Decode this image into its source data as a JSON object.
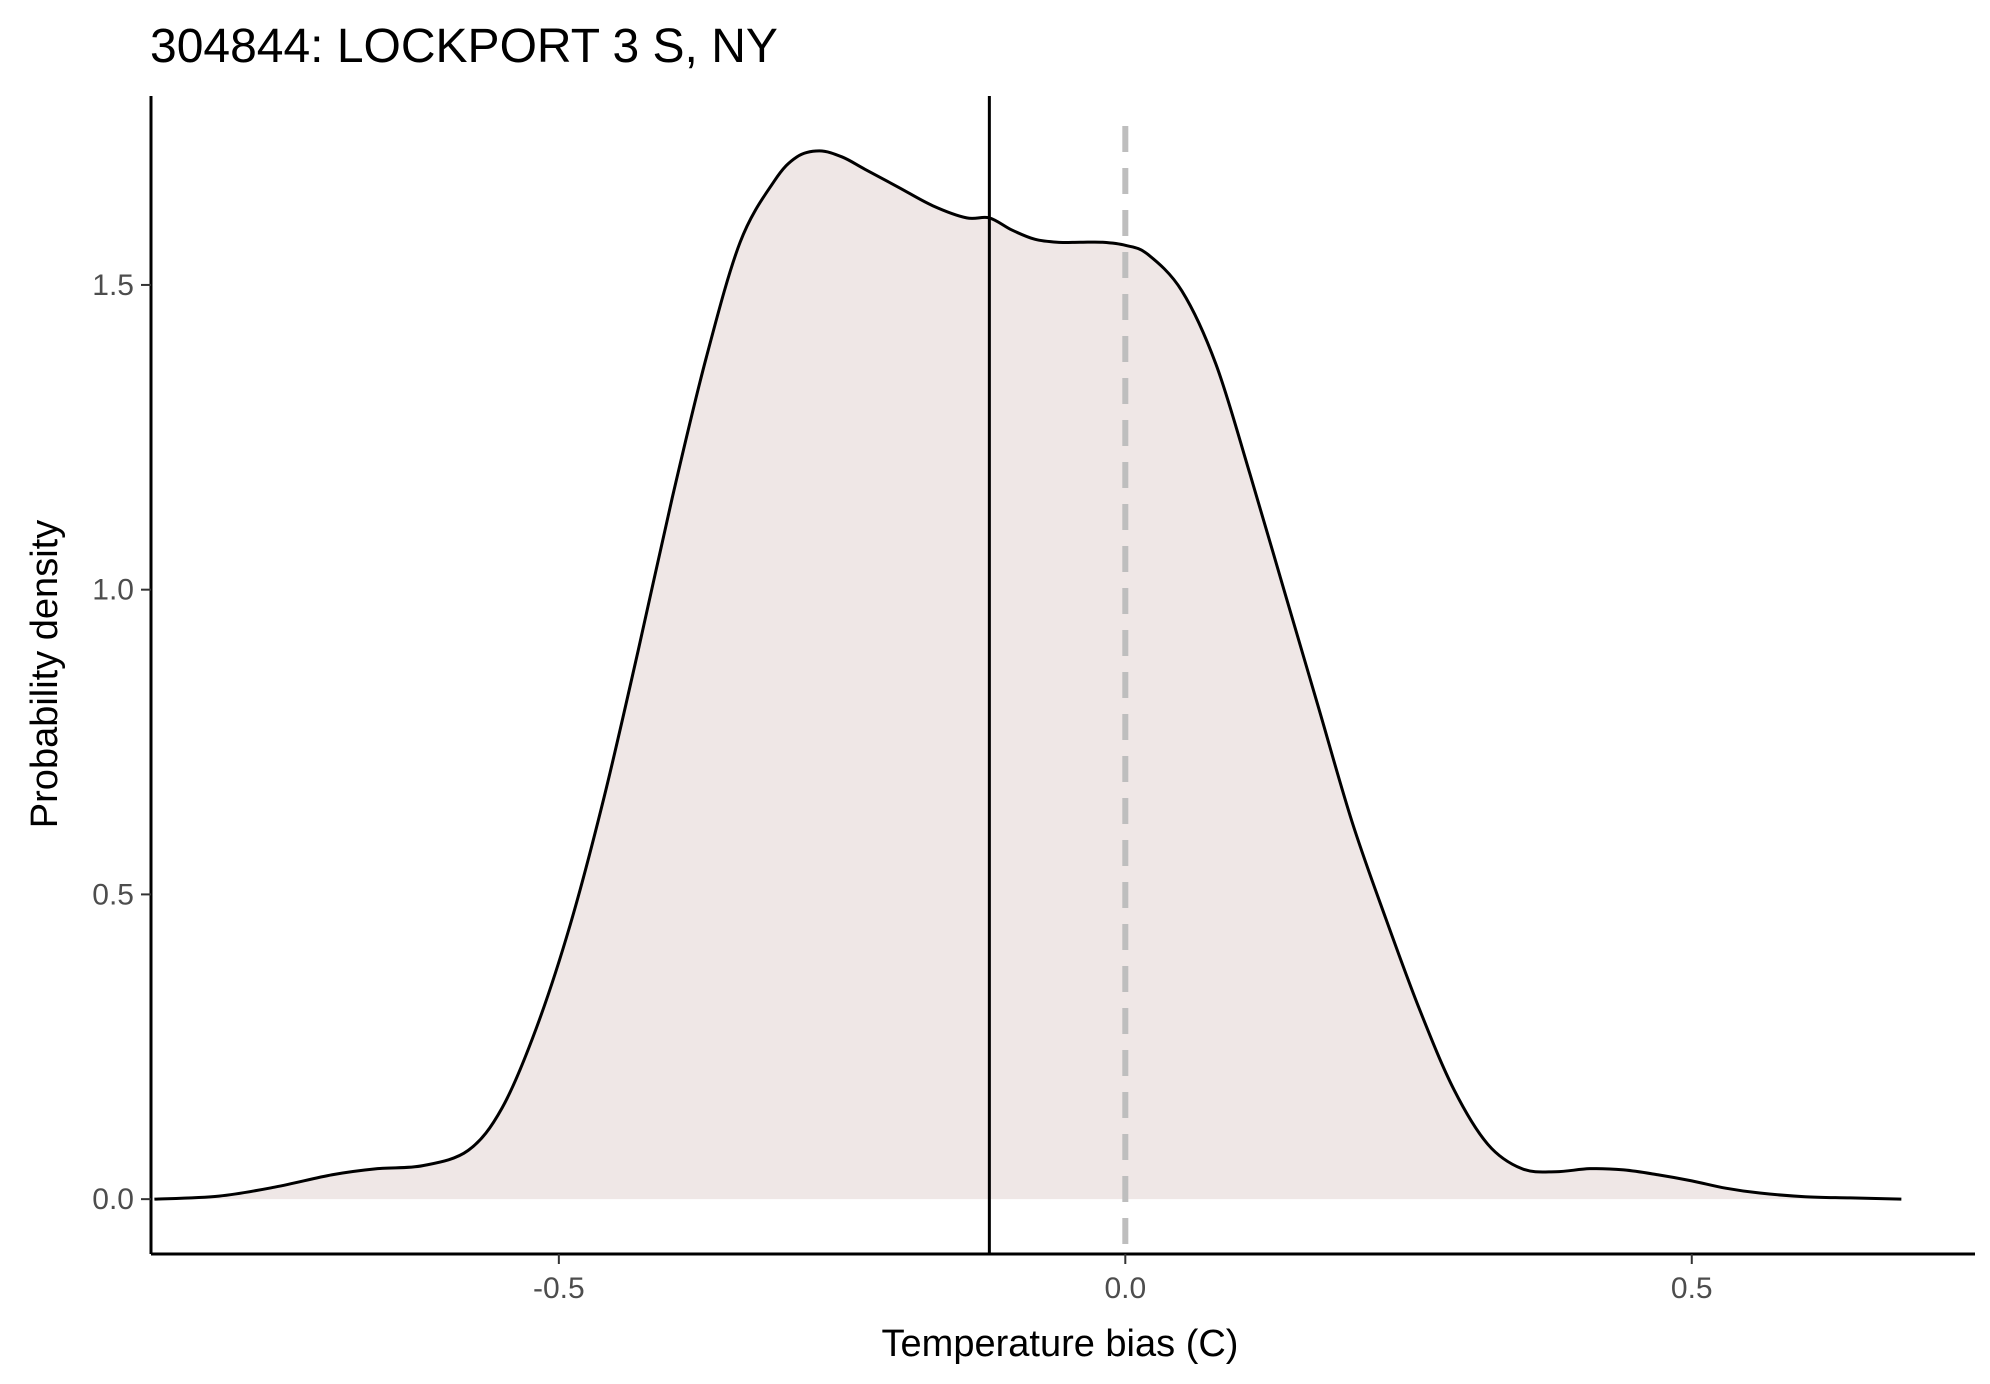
{
  "chart_data": {
    "type": "area",
    "title": "304844: LOCKPORT 3 S, NY",
    "xlabel": "Temperature bias (C)",
    "ylabel": "Probability density",
    "xlim": [
      -0.86,
      0.75
    ],
    "ylim": [
      -0.09,
      1.81
    ],
    "x_ticks": [
      -0.5,
      0.0,
      0.5
    ],
    "x_tick_labels": [
      "-0.5",
      "0.0",
      "0.5"
    ],
    "y_ticks": [
      0.0,
      0.5,
      1.0,
      1.5
    ],
    "y_tick_labels": [
      "0.0",
      "0.5",
      "1.0",
      "1.5"
    ],
    "grid": false,
    "legend": "none",
    "series": [
      {
        "x": [
          -0.857,
          -0.8,
          -0.75,
          -0.7,
          -0.66,
          -0.62,
          -0.58,
          -0.55,
          -0.52,
          -0.49,
          -0.46,
          -0.43,
          -0.4,
          -0.37,
          -0.34,
          -0.31,
          -0.29,
          -0.27,
          -0.25,
          -0.23,
          -0.2,
          -0.17,
          -0.14,
          -0.12,
          -0.1,
          -0.08,
          -0.06,
          -0.04,
          -0.02,
          0.0,
          0.02,
          0.05,
          0.08,
          0.11,
          0.14,
          0.17,
          0.2,
          0.23,
          0.26,
          0.29,
          0.32,
          0.35,
          0.38,
          0.41,
          0.44,
          0.47,
          0.5,
          0.53,
          0.56,
          0.6,
          0.64,
          0.685
        ],
        "y": [
          0.0,
          0.005,
          0.02,
          0.04,
          0.05,
          0.055,
          0.08,
          0.15,
          0.28,
          0.45,
          0.66,
          0.9,
          1.15,
          1.38,
          1.57,
          1.67,
          1.71,
          1.72,
          1.71,
          1.69,
          1.66,
          1.63,
          1.61,
          1.61,
          1.59,
          1.575,
          1.57,
          1.57,
          1.57,
          1.565,
          1.55,
          1.49,
          1.37,
          1.19,
          1.0,
          0.81,
          0.62,
          0.46,
          0.31,
          0.18,
          0.09,
          0.05,
          0.045,
          0.05,
          0.048,
          0.04,
          0.03,
          0.018,
          0.01,
          0.004,
          0.002,
          0.0
        ],
        "fill": "#efe7e6",
        "stroke": "#000000"
      }
    ],
    "reference_lines": [
      {
        "x": -0.12,
        "style": "solid",
        "color": "#000000"
      },
      {
        "x": 0.0,
        "style": "dashed",
        "color": "#bebebe"
      }
    ]
  }
}
